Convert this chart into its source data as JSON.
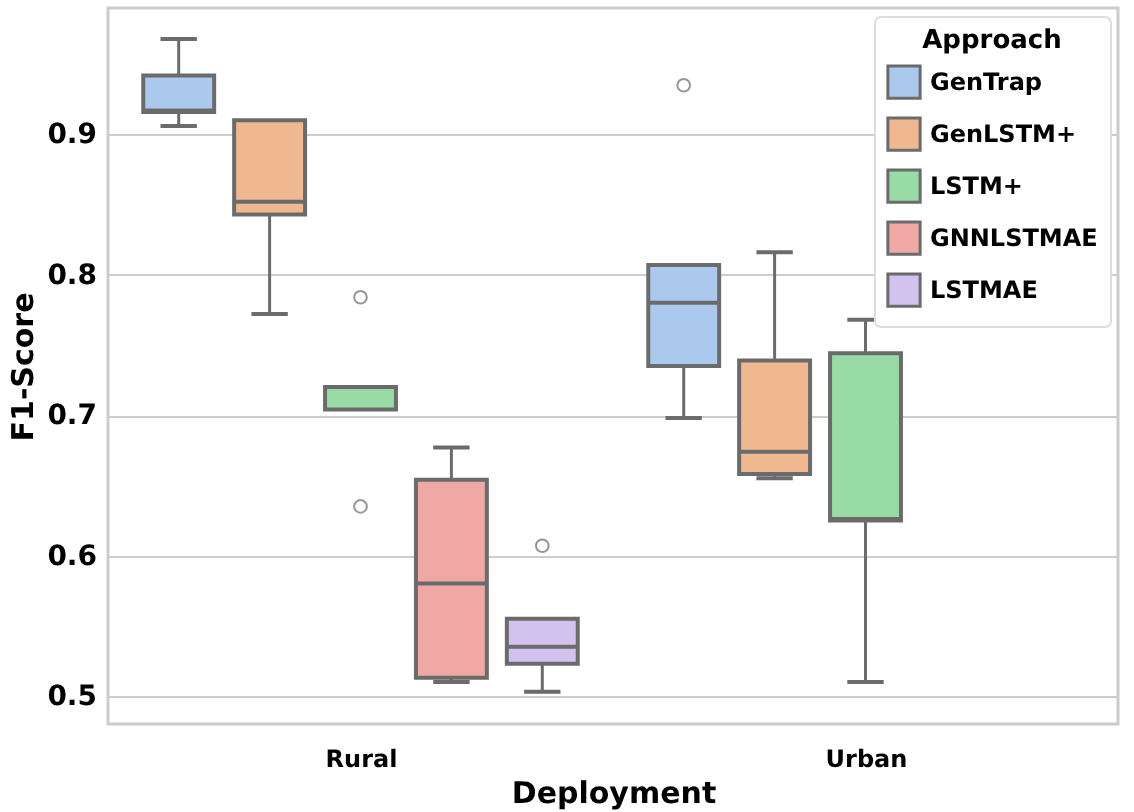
{
  "chart_data": {
    "type": "box",
    "xlabel": "Deployment",
    "ylabel": "F1-Score",
    "legend_title": "Approach",
    "categories": [
      "Rural",
      "Urban"
    ],
    "series": [
      {
        "name": "GenTrap",
        "color": "#abc9ec",
        "boxes": [
          {
            "low": 0.906,
            "q1": 0.916,
            "median": 0.917,
            "q3": 0.942,
            "high": 0.968
          },
          {
            "low": 0.698,
            "q1": 0.735,
            "median": 0.78,
            "q3": 0.807,
            "high": 0.807,
            "outliers": [
              0.935
            ]
          }
        ]
      },
      {
        "name": "GenLSTM+",
        "color": "#f0b891",
        "boxes": [
          {
            "low": 0.772,
            "q1": 0.843,
            "median": 0.852,
            "q3": 0.91,
            "high": 0.91
          },
          {
            "low": 0.655,
            "q1": 0.658,
            "median": 0.674,
            "q3": 0.739,
            "high": 0.816
          }
        ]
      },
      {
        "name": "LSTM+",
        "color": "#99dba5",
        "boxes": [
          {
            "low": 0.704,
            "q1": 0.704,
            "median": 0.72,
            "q3": 0.72,
            "high": 0.72,
            "outliers": [
              0.784,
              0.635
            ]
          },
          {
            "low": 0.51,
            "q1": 0.625,
            "median": 0.626,
            "q3": 0.744,
            "high": 0.768
          }
        ]
      },
      {
        "name": "GNNLSTMAE",
        "color": "#f0a8a5",
        "boxes": [
          {
            "low": 0.51,
            "q1": 0.513,
            "median": 0.58,
            "q3": 0.654,
            "high": 0.677
          },
          null
        ]
      },
      {
        "name": "LSTMAE",
        "color": "#d1c2f0",
        "boxes": [
          {
            "low": 0.503,
            "q1": 0.523,
            "median": 0.535,
            "q3": 0.555,
            "high": 0.555,
            "outliers": [
              0.607
            ]
          },
          null
        ]
      }
    ],
    "ylim": [
      0.48,
      0.99
    ],
    "yticks": [
      0.5,
      0.6,
      0.7,
      0.8,
      0.9
    ],
    "grid": "y",
    "legend": "top right"
  }
}
